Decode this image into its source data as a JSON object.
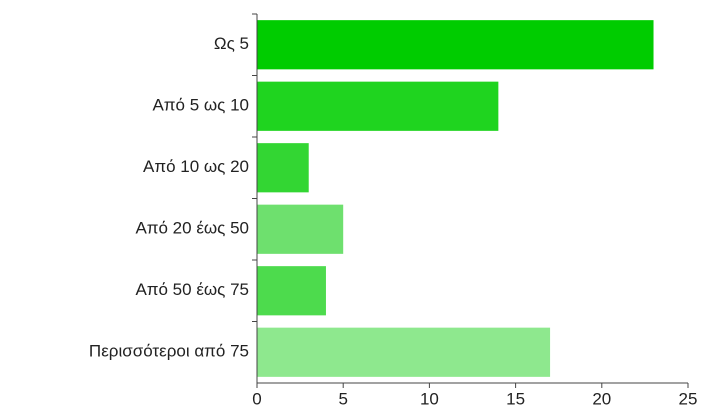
{
  "chart_data": {
    "type": "barh",
    "categories": [
      "Ως 5",
      "Από 5 ως 10",
      "Από 10 ως 20",
      "Από 20 έως 50",
      "Από 50 έως 75",
      "Περισσότεροι από 75"
    ],
    "values": [
      23,
      14,
      3,
      5,
      4,
      17
    ],
    "colors": [
      "#00cc00",
      "#1fd41f",
      "#33d633",
      "#6ee06e",
      "#4ddb4d",
      "#8ee88e"
    ],
    "xlim": [
      0,
      25
    ],
    "xticks": [
      0,
      5,
      10,
      15,
      20,
      25
    ],
    "grid": false
  }
}
